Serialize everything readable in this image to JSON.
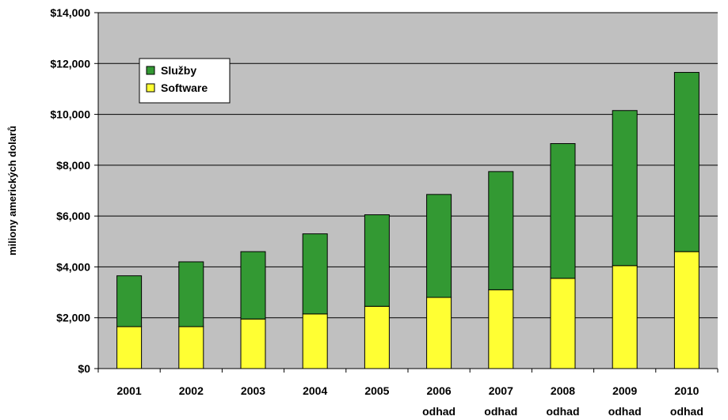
{
  "chart_data": {
    "type": "bar",
    "stacked": true,
    "categories": [
      "2001",
      "2002",
      "2003",
      "2004",
      "2005",
      "2006",
      "2007",
      "2008",
      "2009",
      "2010"
    ],
    "category_sublabels": [
      "",
      "",
      "",
      "",
      "",
      "odhad",
      "odhad",
      "odhad",
      "odhad",
      "odhad"
    ],
    "series": [
      {
        "name": "Software",
        "color": "#ffff33",
        "values": [
          1650,
          1650,
          1950,
          2150,
          2450,
          2800,
          3100,
          3550,
          4050,
          4600
        ]
      },
      {
        "name": "Služby",
        "color": "#339933",
        "values": [
          2000,
          2550,
          2650,
          3150,
          3600,
          4050,
          4650,
          5300,
          6100,
          7050
        ]
      }
    ],
    "ylabel": "miliony amerických dolarů",
    "xlabel": "",
    "ylim": [
      0,
      14000
    ],
    "yticks": [
      0,
      2000,
      4000,
      6000,
      8000,
      10000,
      12000,
      14000
    ],
    "ytick_labels": [
      "$0",
      "$2,000",
      "$4,000",
      "$6,000",
      "$8,000",
      "$10,000",
      "$12,000",
      "$14,000"
    ],
    "grid": true,
    "plot_background": "#c0c0c0",
    "legend": {
      "position": "top-left",
      "order": [
        "Služby",
        "Software"
      ]
    }
  }
}
